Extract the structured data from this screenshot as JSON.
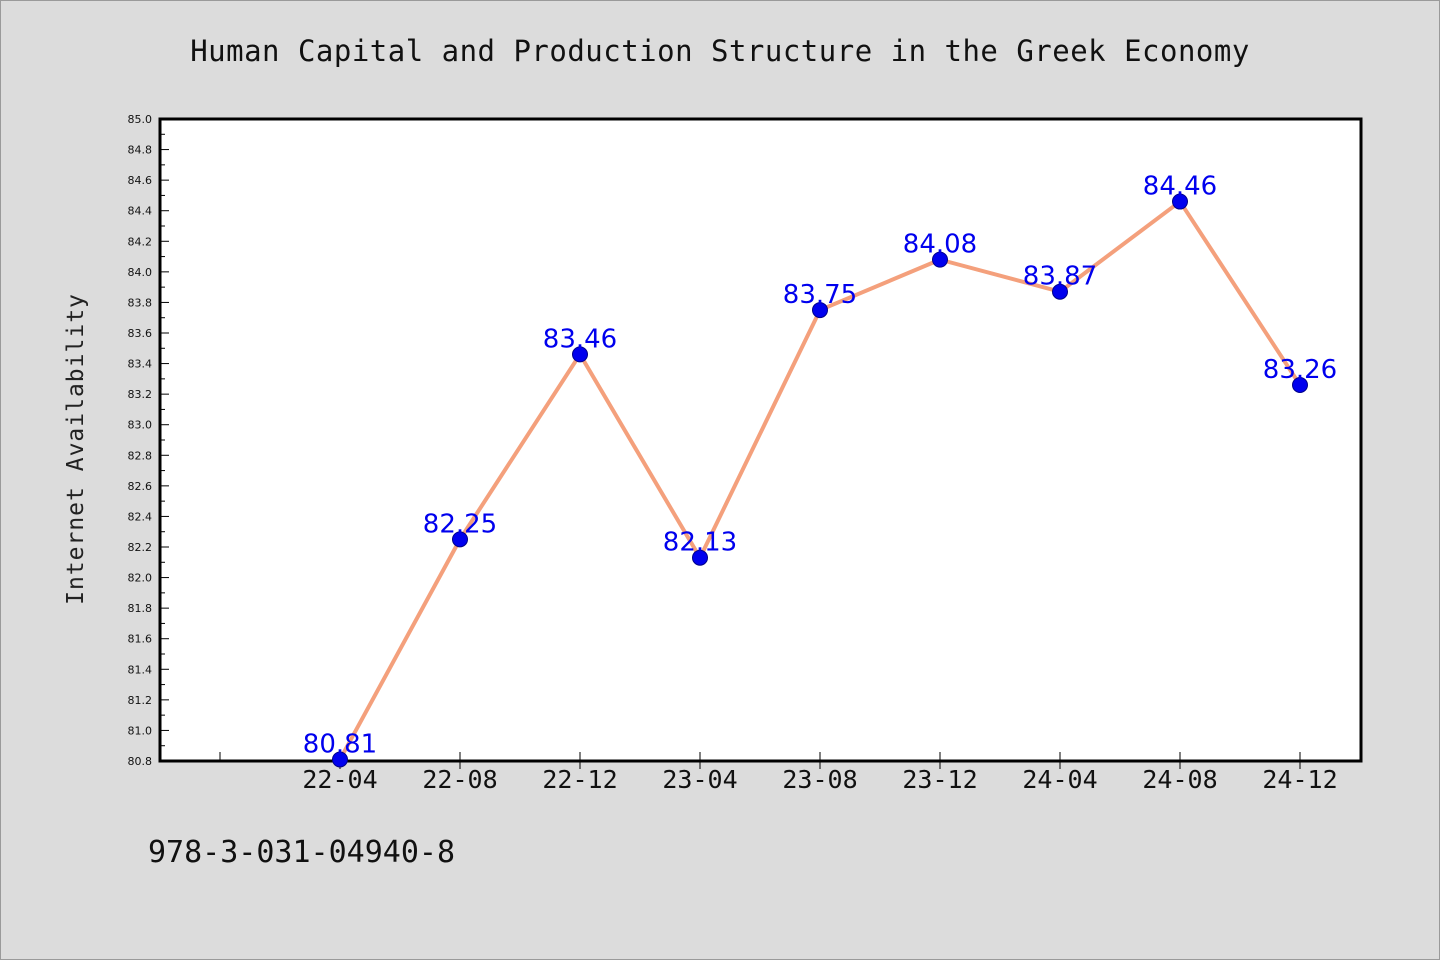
{
  "chart_data": {
    "type": "line",
    "title": "Human Capital and Production Structure in the Greek Economy",
    "xlabel": "",
    "ylabel": "Internet Availability",
    "categories": [
      "22-04",
      "22-08",
      "22-12",
      "23-04",
      "23-08",
      "23-12",
      "24-04",
      "24-08",
      "24-12"
    ],
    "series": [
      {
        "values": [
          80.81,
          82.25,
          83.46,
          82.13,
          83.75,
          84.08,
          83.87,
          84.46,
          83.26
        ],
        "line_color": "#f4a07c",
        "marker_color": "#0000ee",
        "label_color": "#0000ee"
      }
    ],
    "data_labels": [
      "80.81",
      "82.25",
      "83.46",
      "82.13",
      "83.75",
      "84.08",
      "83.87",
      "84.46",
      "83.26"
    ],
    "ylim": [
      80.8,
      85.0
    ],
    "yticks": [
      "80.8",
      "81.0",
      "81.2",
      "81.4",
      "81.6",
      "81.8",
      "82.0",
      "82.2",
      "82.4",
      "82.6",
      "82.8",
      "83.0",
      "83.2",
      "83.4",
      "83.6",
      "83.8",
      "84.0",
      "84.2",
      "84.4",
      "84.6",
      "84.8",
      "85.0"
    ],
    "grid": false,
    "legend": "none"
  },
  "footer": {
    "isbn": "978-3-031-04940-8"
  },
  "colors": {
    "background": "#dcdcdc",
    "plot_area": "#ffffff",
    "axis": "#000000"
  }
}
